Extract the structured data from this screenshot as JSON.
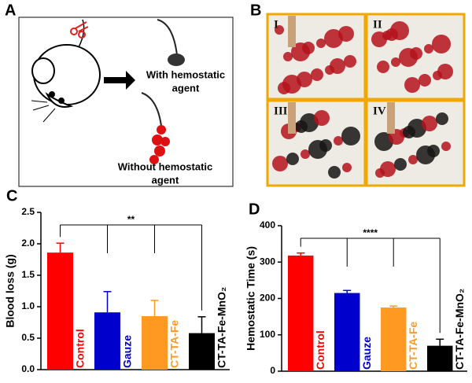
{
  "figure": {
    "panel_a": "A",
    "panel_b": "B",
    "with_agent": [
      "With hemostatic",
      "agent"
    ],
    "without_agent": [
      "Without hemostatic",
      "agent"
    ],
    "photo_labels": [
      "I",
      "II",
      "III",
      "IV"
    ]
  },
  "chart_data": [
    {
      "type": "bar",
      "panel_label": "C",
      "y_label": "Blood loss (g)",
      "categories": [
        "Control",
        "Gauze",
        "CT-TA-Fe",
        "CT-TA-Fe-MnO₂"
      ],
      "values": [
        1.86,
        0.91,
        0.85,
        0.58
      ],
      "errors": [
        0.15,
        0.33,
        0.25,
        0.26
      ],
      "colors": [
        "#ff0000",
        "#0000cc",
        "#ff9922",
        "#000000"
      ],
      "ylim": [
        0,
        2.5
      ],
      "yticks": [
        {
          "value": 0,
          "label": "0.0"
        },
        0.5,
        {
          "value": 1,
          "label": "1.0"
        },
        1.5,
        {
          "value": 2,
          "label": "2.0"
        },
        2.5
      ],
      "significance": "**"
    },
    {
      "type": "bar",
      "panel_label": "D",
      "y_label": "Hemostatic Time (s)",
      "categories": [
        "Control",
        "Gauze",
        "CT-TA-Fe",
        "CT-TA-Fe-MnO₂"
      ],
      "values": [
        318,
        215,
        175,
        70
      ],
      "errors": [
        7,
        7,
        4,
        18
      ],
      "colors": [
        "#ff0000",
        "#0000cc",
        "#ff9922",
        "#000000"
      ],
      "ylim": [
        0,
        400
      ],
      "yticks": [
        0,
        100,
        200,
        300,
        400
      ],
      "significance": "****"
    }
  ]
}
